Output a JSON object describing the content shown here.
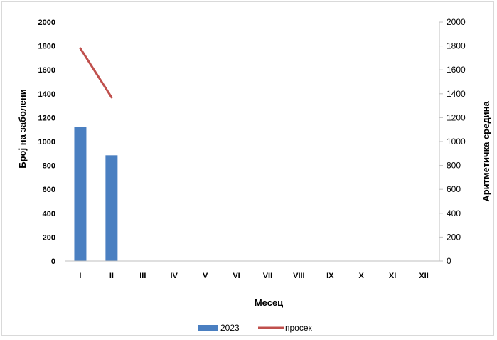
{
  "chart_data": {
    "type": "bar",
    "categories": [
      "I",
      "II",
      "III",
      "IV",
      "V",
      "VI",
      "VII",
      "VIII",
      "IX",
      "X",
      "XI",
      "XII"
    ],
    "series": [
      {
        "name": "2023",
        "type": "bar",
        "axis": "left",
        "color": "#4a7fc1",
        "values": [
          1120,
          885,
          null,
          null,
          null,
          null,
          null,
          null,
          null,
          null,
          null,
          null
        ]
      },
      {
        "name": "просек",
        "type": "line",
        "axis": "right",
        "color": "#c0504d",
        "values": [
          1780,
          1370,
          null,
          null,
          null,
          null,
          null,
          null,
          null,
          null,
          null,
          null
        ]
      }
    ],
    "xlabel": "Месец",
    "ylabel": "Број на заболени",
    "y2label": "Аритметичка средина",
    "ylim": [
      0,
      2000
    ],
    "y2lim": [
      0,
      2000
    ],
    "yticks": [
      "0",
      "200",
      "400",
      "600",
      "800",
      "1000",
      "1200",
      "1400",
      "1600",
      "1800",
      "2000"
    ],
    "y2ticks": [
      "0",
      "200",
      "400",
      "600",
      "800",
      "1000",
      "1200",
      "1400",
      "1600",
      "1800",
      "2000"
    ],
    "grid": false,
    "legend_position": "bottom"
  }
}
